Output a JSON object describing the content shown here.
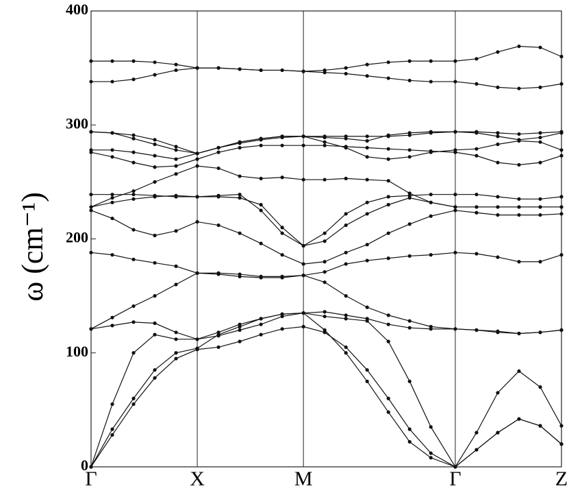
{
  "chart_data": {
    "type": "line",
    "ylabel": "ω (cm⁻¹)",
    "xlim": [
      0,
      4.43
    ],
    "ylim": [
      0,
      400
    ],
    "yticks": [
      0,
      100,
      200,
      300,
      400
    ],
    "xticks": [
      {
        "value": 0,
        "label": "Γ"
      },
      {
        "value": 1,
        "label": "X"
      },
      {
        "value": 2,
        "label": "M"
      },
      {
        "value": 3.43,
        "label": "Γ"
      },
      {
        "value": 4.43,
        "label": "Z"
      }
    ],
    "x": [
      0,
      0.2,
      0.4,
      0.6,
      0.8,
      1.0,
      1.2,
      1.4,
      1.6,
      1.8,
      2.0,
      2.2,
      2.4,
      2.6,
      2.8,
      3.0,
      3.2,
      3.43,
      3.63,
      3.83,
      4.03,
      4.23,
      4.43
    ],
    "series": [
      {
        "color": "#111111",
        "values": [
          0,
          28,
          55,
          78,
          95,
          103,
          105,
          110,
          116,
          121,
          123,
          118,
          105,
          85,
          60,
          33,
          12,
          0,
          15,
          30,
          42,
          36,
          20
        ]
      },
      {
        "color": "#111111",
        "values": [
          0,
          33,
          60,
          85,
          100,
          104,
          116,
          123,
          130,
          134,
          135,
          120,
          100,
          75,
          48,
          22,
          8,
          0,
          15,
          30,
          42,
          36,
          20
        ]
      },
      {
        "color": "#111111",
        "values": [
          0,
          55,
          100,
          116,
          112,
          112,
          115,
          120,
          125,
          132,
          135,
          132,
          130,
          128,
          110,
          75,
          35,
          0,
          30,
          65,
          84,
          70,
          36
        ]
      },
      {
        "color": "#111111",
        "values": [
          121,
          124,
          127,
          126,
          118,
          112,
          118,
          125,
          130,
          134,
          135,
          136,
          133,
          130,
          125,
          122,
          121,
          121,
          120,
          118,
          117,
          118,
          120
        ]
      },
      {
        "color": "#111111",
        "values": [
          121,
          131,
          141,
          150,
          160,
          170,
          169,
          167,
          166,
          166,
          168,
          162,
          150,
          140,
          133,
          128,
          123,
          121,
          120,
          119,
          117,
          118,
          120
        ]
      },
      {
        "color": "#111111",
        "values": [
          188,
          186,
          182,
          179,
          176,
          170,
          170,
          169,
          167,
          167,
          168,
          171,
          178,
          181,
          183,
          185,
          186,
          188,
          187,
          184,
          180,
          180,
          186
        ]
      },
      {
        "color": "#111111",
        "values": [
          225,
          218,
          208,
          203,
          207,
          215,
          212,
          205,
          196,
          186,
          178,
          180,
          188,
          195,
          205,
          213,
          220,
          225,
          223,
          221,
          221,
          221,
          222
        ]
      },
      {
        "color": "#111111",
        "values": [
          228,
          232,
          235,
          237,
          238,
          237,
          238,
          239,
          225,
          205,
          194,
          198,
          212,
          222,
          230,
          236,
          232,
          228,
          228,
          228,
          228,
          228,
          228
        ]
      },
      {
        "color": "#111111",
        "values": [
          228,
          236,
          242,
          250,
          257,
          264,
          262,
          255,
          253,
          254,
          252,
          252,
          253,
          252,
          251,
          240,
          232,
          228,
          228,
          228,
          228,
          228,
          228
        ]
      },
      {
        "color": "#111111",
        "values": [
          239,
          239,
          239,
          238,
          237,
          237,
          237,
          236,
          230,
          210,
          194,
          205,
          222,
          232,
          237,
          238,
          239,
          239,
          239,
          237,
          235,
          235,
          237
        ]
      },
      {
        "color": "#111111",
        "values": [
          276,
          272,
          267,
          263,
          264,
          270,
          276,
          280,
          282,
          282,
          282,
          282,
          281,
          280,
          279,
          278,
          277,
          276,
          273,
          267,
          265,
          267,
          273
        ]
      },
      {
        "color": "#111111",
        "values": [
          278,
          278,
          276,
          273,
          270,
          275,
          280,
          284,
          287,
          289,
          290,
          285,
          280,
          272,
          270,
          272,
          276,
          278,
          279,
          283,
          286,
          285,
          278
        ]
      },
      {
        "color": "#111111",
        "values": [
          294,
          293,
          288,
          283,
          278,
          275,
          280,
          285,
          288,
          290,
          290,
          290,
          290,
          290,
          290,
          291,
          293,
          294,
          293,
          290,
          287,
          289,
          293
        ]
      },
      {
        "color": "#111111",
        "values": [
          294,
          293,
          291,
          287,
          281,
          275,
          280,
          285,
          288,
          290,
          290,
          289,
          288,
          286,
          291,
          293,
          294,
          294,
          294,
          293,
          292,
          293,
          294
        ]
      },
      {
        "color": "#111111",
        "values": [
          338,
          338,
          340,
          344,
          348,
          350,
          350,
          349,
          348,
          348,
          347,
          346,
          345,
          343,
          341,
          339,
          338,
          338,
          336,
          333,
          332,
          333,
          336
        ]
      },
      {
        "color": "#111111",
        "values": [
          356,
          356,
          356,
          355,
          353,
          350,
          350,
          349,
          348,
          348,
          347,
          348,
          350,
          353,
          355,
          356,
          356,
          356,
          358,
          364,
          369,
          368,
          360
        ]
      }
    ]
  }
}
